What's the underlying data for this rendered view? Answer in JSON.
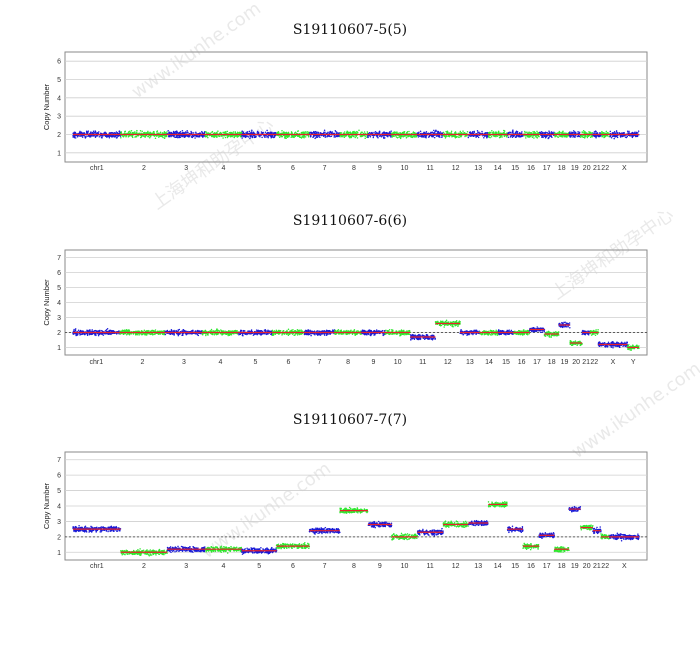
{
  "watermarks": {
    "url": "www.ikunhe.com",
    "cn": "上海坤和助孕中心"
  },
  "chart_data": [
    {
      "type": "scatter",
      "title": "S19110607-5(5)",
      "ylabel": "Copy Number",
      "ylim": [
        0.5,
        6.5
      ],
      "yticks": [
        1,
        2,
        3,
        4,
        5,
        6
      ],
      "baseline": 2,
      "chromosomes": [
        "chr1",
        "2",
        "3",
        "4",
        "5",
        "6",
        "7",
        "8",
        "9",
        "10",
        "11",
        "12",
        "13",
        "14",
        "15",
        "16",
        "17",
        "18",
        "19",
        "20",
        "21",
        "22",
        "X"
      ],
      "segments": [
        {
          "chr": "chr1",
          "cn": 2.0
        },
        {
          "chr": "2",
          "cn": 2.0
        },
        {
          "chr": "3",
          "cn": 2.0
        },
        {
          "chr": "4",
          "cn": 2.0
        },
        {
          "chr": "5",
          "cn": 2.0
        },
        {
          "chr": "6",
          "cn": 2.0
        },
        {
          "chr": "7",
          "cn": 2.0
        },
        {
          "chr": "8",
          "cn": 2.0
        },
        {
          "chr": "9",
          "cn": 2.0
        },
        {
          "chr": "10",
          "cn": 2.0
        },
        {
          "chr": "11",
          "cn": 2.0
        },
        {
          "chr": "12",
          "cn": 2.0
        },
        {
          "chr": "13",
          "cn": 2.0
        },
        {
          "chr": "14",
          "cn": 2.0
        },
        {
          "chr": "15",
          "cn": 2.0
        },
        {
          "chr": "16",
          "cn": 2.0
        },
        {
          "chr": "17",
          "cn": 2.0
        },
        {
          "chr": "18",
          "cn": 2.0
        },
        {
          "chr": "19",
          "cn": 2.0
        },
        {
          "chr": "20",
          "cn": 2.0
        },
        {
          "chr": "21",
          "cn": 2.0
        },
        {
          "chr": "22",
          "cn": 2.0
        },
        {
          "chr": "X",
          "cn": 2.0
        }
      ]
    },
    {
      "type": "scatter",
      "title": "S19110607-6(6)",
      "ylabel": "Copy Number",
      "ylim": [
        0.5,
        7.5
      ],
      "yticks": [
        1,
        2,
        3,
        4,
        5,
        6,
        7
      ],
      "baseline": 2,
      "chromosomes": [
        "chr1",
        "2",
        "3",
        "4",
        "5",
        "6",
        "7",
        "8",
        "9",
        "10",
        "11",
        "12",
        "13",
        "14",
        "15",
        "16",
        "17",
        "18",
        "19",
        "20",
        "21",
        "22",
        "X",
        "Y"
      ],
      "segments": [
        {
          "chr": "chr1",
          "cn": 2.0
        },
        {
          "chr": "2",
          "cn": 2.0
        },
        {
          "chr": "3",
          "cn": 2.0
        },
        {
          "chr": "4",
          "cn": 2.0
        },
        {
          "chr": "5",
          "cn": 2.0
        },
        {
          "chr": "6",
          "cn": 2.0
        },
        {
          "chr": "7",
          "cn": 2.0
        },
        {
          "chr": "8",
          "cn": 2.0
        },
        {
          "chr": "9",
          "cn": 2.0
        },
        {
          "chr": "10",
          "cn": 2.0
        },
        {
          "chr": "11",
          "cn": 1.7
        },
        {
          "chr": "12",
          "cn": 2.6
        },
        {
          "chr": "13",
          "cn": 2.0
        },
        {
          "chr": "14",
          "cn": 2.0
        },
        {
          "chr": "15",
          "cn": 2.0
        },
        {
          "chr": "16",
          "cn": 2.0
        },
        {
          "chr": "17",
          "cn": 2.2
        },
        {
          "chr": "18",
          "cn": 1.9
        },
        {
          "chr": "19",
          "cn": 2.5
        },
        {
          "chr": "20",
          "cn": 1.3
        },
        {
          "chr": "21",
          "cn": 2.0
        },
        {
          "chr": "22",
          "cn": 2.0
        },
        {
          "chr": "X",
          "cn": 1.2
        },
        {
          "chr": "Y",
          "cn": 1.0
        }
      ]
    },
    {
      "type": "scatter",
      "title": "S19110607-7(7)",
      "ylabel": "Copy Number",
      "ylim": [
        0.5,
        7.5
      ],
      "yticks": [
        1,
        2,
        3,
        4,
        5,
        6,
        7
      ],
      "baseline": 2,
      "chromosomes": [
        "chr1",
        "2",
        "3",
        "4",
        "5",
        "6",
        "7",
        "8",
        "9",
        "10",
        "11",
        "12",
        "13",
        "14",
        "15",
        "16",
        "17",
        "18",
        "19",
        "20",
        "21",
        "22",
        "X"
      ],
      "segments": [
        {
          "chr": "chr1",
          "cn": 2.5
        },
        {
          "chr": "2",
          "cn": 1.0
        },
        {
          "chr": "3",
          "cn": 1.2
        },
        {
          "chr": "4",
          "cn": 1.2
        },
        {
          "chr": "5",
          "cn": 1.1
        },
        {
          "chr": "6",
          "cn": 1.4
        },
        {
          "chr": "7",
          "cn": 2.4
        },
        {
          "chr": "8",
          "cn": 3.7
        },
        {
          "chr": "9",
          "cn": 2.8
        },
        {
          "chr": "10",
          "cn": 2.0
        },
        {
          "chr": "11",
          "cn": 2.3
        },
        {
          "chr": "12",
          "cn": 2.8
        },
        {
          "chr": "13",
          "cn": 2.9
        },
        {
          "chr": "14",
          "cn": 4.1
        },
        {
          "chr": "15",
          "cn": 2.5
        },
        {
          "chr": "16",
          "cn": 1.4
        },
        {
          "chr": "17",
          "cn": 2.1
        },
        {
          "chr": "18",
          "cn": 1.2
        },
        {
          "chr": "19",
          "cn": 3.8
        },
        {
          "chr": "20",
          "cn": 2.6
        },
        {
          "chr": "21",
          "cn": 2.4
        },
        {
          "chr": "22",
          "cn": 2.0
        },
        {
          "chr": "X",
          "cn": 2.0
        }
      ]
    }
  ],
  "colors": {
    "dots_a": "#1a1ad6",
    "dots_b": "#2ee82e",
    "segment": "#e8202a",
    "grid": "#cfcfcf",
    "frame": "#8a8a8a"
  }
}
